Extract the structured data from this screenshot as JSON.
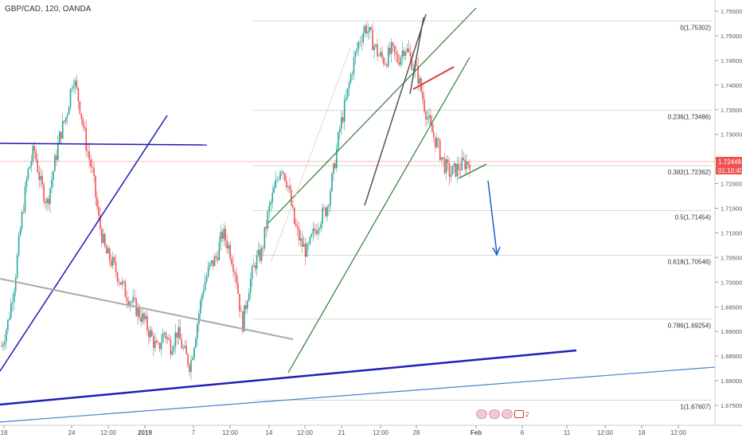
{
  "header": {
    "title": "GBP/CAD, 120, OANDA"
  },
  "price_axis": {
    "ticks": [
      "1.75500",
      "1.75000",
      "1.74500",
      "1.74000",
      "1.73500",
      "1.73000",
      "1.72500",
      "1.72000",
      "1.71500",
      "1.71000",
      "1.70500",
      "1.70000",
      "1.69500",
      "1.69000",
      "1.68500",
      "1.68000",
      "1.67500"
    ],
    "current_price": "1.72449",
    "countdown": "01:10:40",
    "current_color": "#ef5350"
  },
  "time_axis": {
    "labels": [
      "18",
      "24",
      "12:00",
      "2019",
      "7",
      "12:00",
      "14",
      "12:00",
      "21",
      "12:00",
      "28",
      "Feb",
      "6",
      "11",
      "12:00",
      "18",
      "12:00"
    ]
  },
  "fib_levels": [
    {
      "label": "0(1.75302)",
      "value": 1.75302
    },
    {
      "label": "0.236(1.73486)",
      "value": 1.73486
    },
    {
      "label": "0.382(1.72362)",
      "value": 1.72362
    },
    {
      "label": "0.5(1.71454)",
      "value": 1.71454
    },
    {
      "label": "0.618(1.70546)",
      "value": 1.70546
    },
    {
      "label": "0.786(1.69254)",
      "value": 1.69254
    },
    {
      "label": "1(1.67607)",
      "value": 1.67607
    }
  ],
  "events": {
    "count_badge": "2"
  },
  "chart_data": {
    "type": "candlestick",
    "title": "GBP/CAD, 120, OANDA",
    "ylim": [
      1.6735,
      1.7565
    ],
    "y_ticks": [
      1.755,
      1.75,
      1.745,
      1.74,
      1.735,
      1.73,
      1.725,
      1.72,
      1.715,
      1.71,
      1.705,
      1.7,
      1.695,
      1.69,
      1.685,
      1.68,
      1.675
    ],
    "x_ticks": [
      "18",
      "24",
      "12:00",
      "2019",
      "7",
      "12:00",
      "14",
      "12:00",
      "21",
      "12:00",
      "28",
      "Feb",
      "6",
      "11",
      "12:00",
      "18",
      "12:00"
    ],
    "up_color": "#26a69a",
    "down_color": "#ef5350",
    "current_price": 1.72449,
    "path": [
      1.687,
      1.692,
      1.7,
      1.712,
      1.722,
      1.727,
      1.72,
      1.716,
      1.723,
      1.73,
      1.734,
      1.742,
      1.736,
      1.728,
      1.722,
      1.712,
      1.706,
      1.704,
      1.701,
      1.698,
      1.696,
      1.694,
      1.692,
      1.689,
      1.686,
      1.69,
      1.687,
      1.69,
      1.686,
      1.683,
      1.691,
      1.699,
      1.703,
      1.705,
      1.71,
      1.707,
      1.702,
      1.691,
      1.699,
      1.704,
      1.706,
      1.714,
      1.719,
      1.724,
      1.72,
      1.712,
      1.708,
      1.706,
      1.71,
      1.713,
      1.715,
      1.722,
      1.731,
      1.737,
      1.744,
      1.749,
      1.752,
      1.749,
      1.746,
      1.745,
      1.747,
      1.745,
      1.748,
      1.745,
      1.742,
      1.736,
      1.731,
      1.728,
      1.724,
      1.722,
      1.723,
      1.724,
      1.7245
    ],
    "annotations": {
      "fib_levels": [
        1.75302,
        1.73486,
        1.72362,
        1.71454,
        1.70546,
        1.69254,
        1.67607
      ],
      "horizontal_line": 1.7283,
      "arrow_target": 1.706
    }
  }
}
